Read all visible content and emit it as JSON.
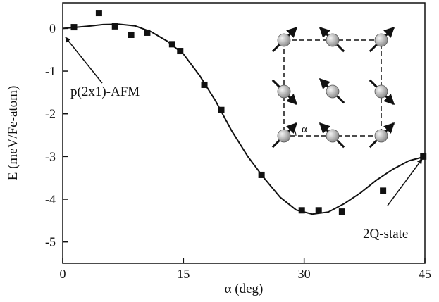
{
  "chart_data": {
    "type": "scatter",
    "xlabel": "α (deg)",
    "ylabel": "E (meV/Fe-atom)",
    "xlim": [
      0,
      45
    ],
    "xticks": [
      0,
      15,
      30,
      45
    ],
    "ylim": [
      -5.5,
      0.6
    ],
    "yticks": [
      0,
      -1,
      -2,
      -3,
      -4,
      -5
    ],
    "color": "#111111",
    "points": {
      "x": [
        1.4,
        4.5,
        6.5,
        8.5,
        10.5,
        13.6,
        14.6,
        17.6,
        19.7,
        24.7,
        29.7,
        31.8,
        34.7,
        39.8,
        44.8
      ],
      "values": [
        0.03,
        0.36,
        0.05,
        -0.15,
        -0.1,
        -0.37,
        -0.53,
        -1.32,
        -1.91,
        -3.43,
        -4.26,
        -4.26,
        -4.29,
        -3.8,
        -3.0
      ]
    },
    "curve": {
      "x": [
        0,
        3,
        5,
        7,
        9,
        11,
        13,
        15,
        17,
        19,
        21,
        23,
        25,
        27,
        29,
        31,
        33,
        35,
        37,
        39,
        41,
        43,
        45
      ],
      "values": [
        0,
        0.05,
        0.09,
        0.1,
        0.06,
        -0.08,
        -0.3,
        -0.6,
        -1.1,
        -1.7,
        -2.4,
        -3.0,
        -3.5,
        -3.95,
        -4.25,
        -4.35,
        -4.3,
        -4.1,
        -3.85,
        -3.55,
        -3.3,
        -3.1,
        -3.0
      ]
    },
    "annotations": [
      "p(2x1)-AFM",
      "2Q-state"
    ],
    "inset_label": "α"
  }
}
